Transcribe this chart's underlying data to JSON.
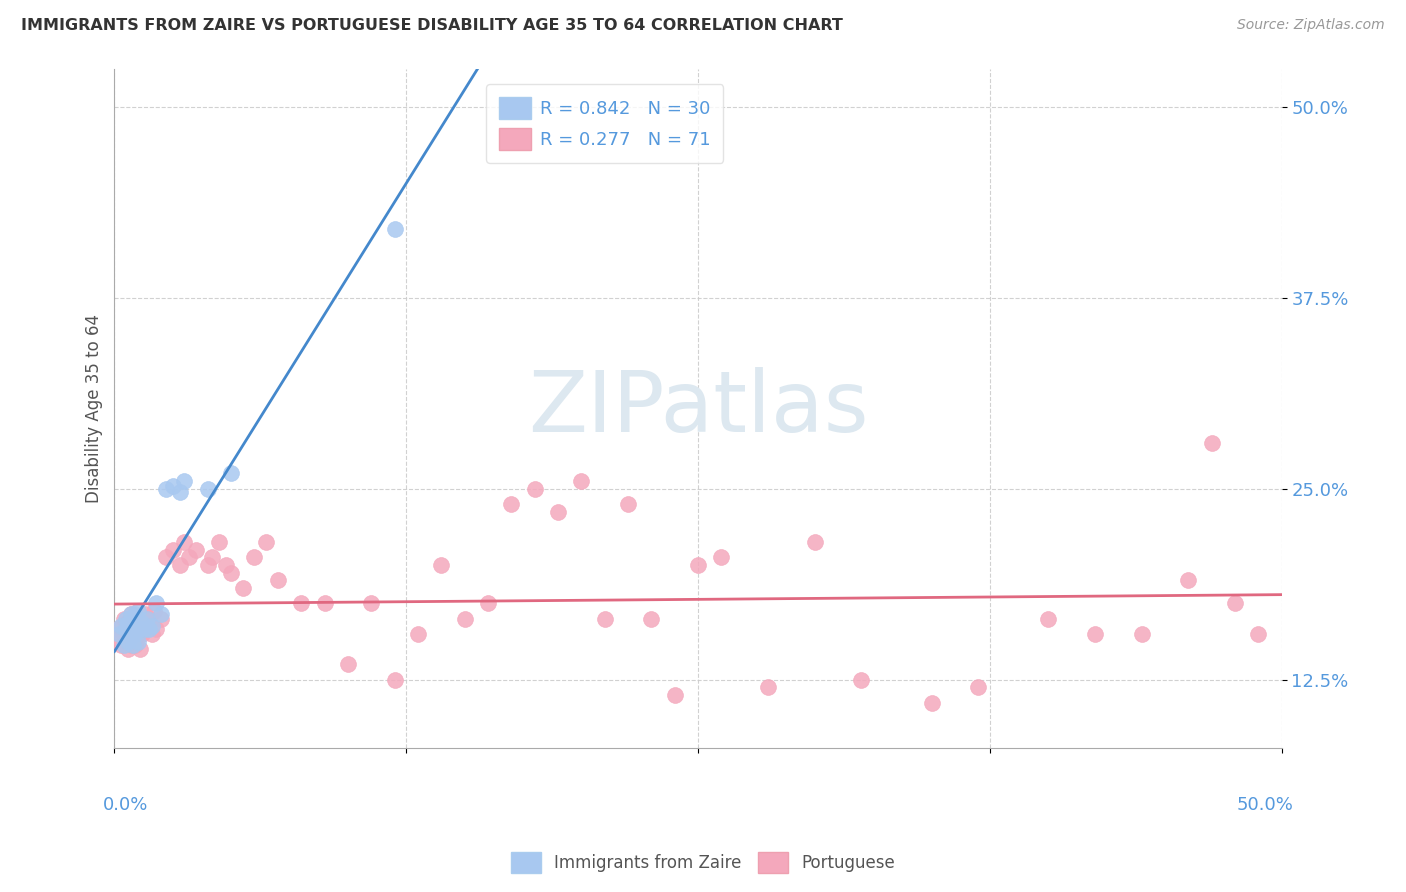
{
  "title": "IMMIGRANTS FROM ZAIRE VS PORTUGUESE DISABILITY AGE 35 TO 64 CORRELATION CHART",
  "source": "Source: ZipAtlas.com",
  "ylabel": "Disability Age 35 to 64",
  "xlim": [
    0.0,
    0.5
  ],
  "ylim": [
    0.08,
    0.525
  ],
  "xtick_labels_bottom": [
    "0.0%",
    "50.0%"
  ],
  "xtick_vals_bottom": [
    0.0,
    0.5
  ],
  "xtick_vals_top": [
    0.0,
    0.125,
    0.25,
    0.375,
    0.5
  ],
  "ytick_labels": [
    "12.5%",
    "25.0%",
    "37.5%",
    "50.0%"
  ],
  "ytick_vals": [
    0.125,
    0.25,
    0.375,
    0.5
  ],
  "blue_color": "#a8c8f0",
  "pink_color": "#f4a8bc",
  "blue_line_color": "#4488cc",
  "pink_line_color": "#e06880",
  "tick_color": "#5599dd",
  "R_blue": 0.842,
  "N_blue": 30,
  "R_pink": 0.277,
  "N_pink": 71,
  "watermark_zip": "ZIP",
  "watermark_atlas": "atlas",
  "watermark_color": "#dde8f0",
  "blue_x": [
    0.002,
    0.003,
    0.004,
    0.005,
    0.005,
    0.006,
    0.006,
    0.007,
    0.007,
    0.008,
    0.008,
    0.009,
    0.009,
    0.01,
    0.01,
    0.011,
    0.012,
    0.013,
    0.014,
    0.015,
    0.016,
    0.018,
    0.02,
    0.022,
    0.025,
    0.028,
    0.03,
    0.04,
    0.05,
    0.12
  ],
  "blue_y": [
    0.155,
    0.16,
    0.148,
    0.165,
    0.158,
    0.15,
    0.162,
    0.155,
    0.168,
    0.148,
    0.16,
    0.155,
    0.168,
    0.15,
    0.17,
    0.158,
    0.162,
    0.158,
    0.165,
    0.158,
    0.16,
    0.175,
    0.168,
    0.25,
    0.252,
    0.248,
    0.255,
    0.25,
    0.26,
    0.42
  ],
  "pink_x": [
    0.001,
    0.002,
    0.003,
    0.004,
    0.004,
    0.005,
    0.005,
    0.006,
    0.006,
    0.007,
    0.007,
    0.008,
    0.008,
    0.009,
    0.01,
    0.01,
    0.011,
    0.012,
    0.013,
    0.014,
    0.015,
    0.016,
    0.017,
    0.018,
    0.02,
    0.022,
    0.025,
    0.028,
    0.03,
    0.032,
    0.035,
    0.04,
    0.042,
    0.045,
    0.048,
    0.05,
    0.055,
    0.06,
    0.065,
    0.07,
    0.08,
    0.09,
    0.1,
    0.11,
    0.12,
    0.13,
    0.14,
    0.15,
    0.16,
    0.17,
    0.18,
    0.19,
    0.2,
    0.21,
    0.22,
    0.23,
    0.24,
    0.25,
    0.26,
    0.28,
    0.3,
    0.32,
    0.35,
    0.37,
    0.4,
    0.42,
    0.44,
    0.46,
    0.47,
    0.48,
    0.49
  ],
  "pink_y": [
    0.158,
    0.152,
    0.148,
    0.165,
    0.155,
    0.15,
    0.162,
    0.145,
    0.155,
    0.168,
    0.148,
    0.16,
    0.155,
    0.148,
    0.155,
    0.165,
    0.145,
    0.155,
    0.168,
    0.16,
    0.165,
    0.155,
    0.17,
    0.158,
    0.165,
    0.205,
    0.21,
    0.2,
    0.215,
    0.205,
    0.21,
    0.2,
    0.205,
    0.215,
    0.2,
    0.195,
    0.185,
    0.205,
    0.215,
    0.19,
    0.175,
    0.175,
    0.135,
    0.175,
    0.125,
    0.155,
    0.2,
    0.165,
    0.175,
    0.24,
    0.25,
    0.235,
    0.255,
    0.165,
    0.24,
    0.165,
    0.115,
    0.2,
    0.205,
    0.12,
    0.215,
    0.125,
    0.11,
    0.12,
    0.165,
    0.155,
    0.155,
    0.19,
    0.28,
    0.175,
    0.155
  ]
}
